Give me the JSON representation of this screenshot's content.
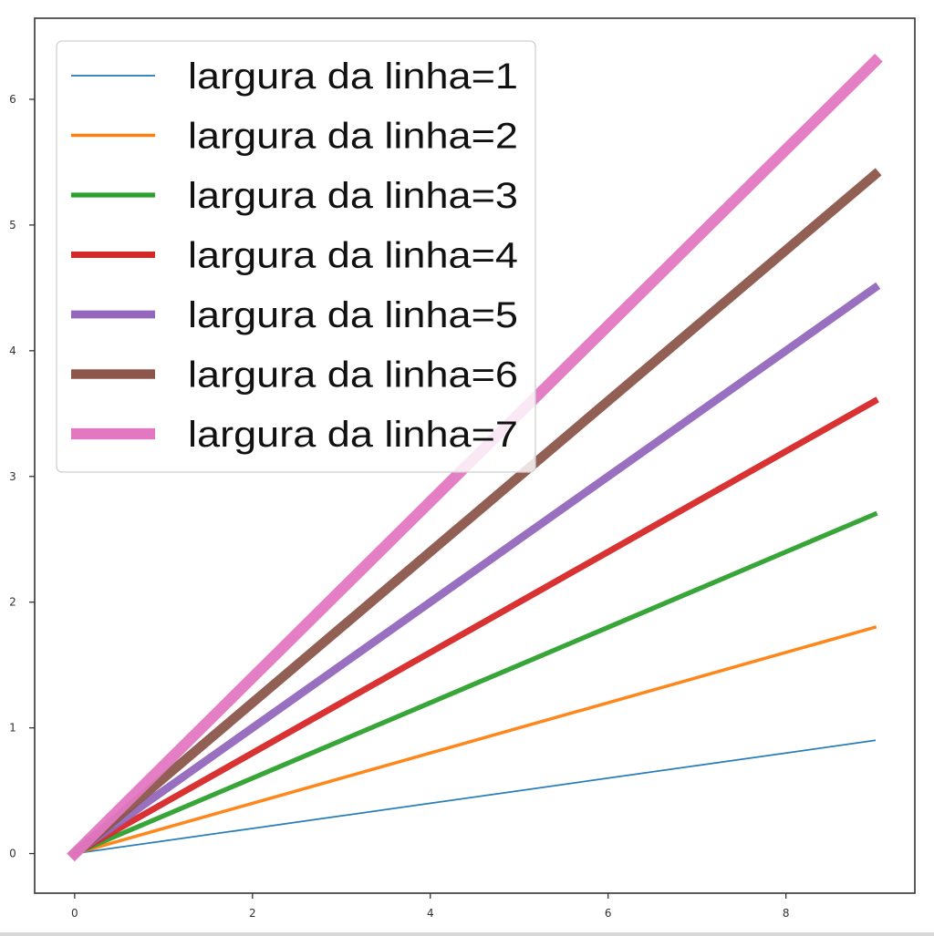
{
  "chart_data": {
    "type": "line",
    "title": "",
    "xlabel": "",
    "ylabel": "",
    "x": [
      0,
      1,
      2,
      3,
      4,
      5,
      6,
      7,
      8,
      9
    ],
    "xlim": [
      -0.45,
      9.45
    ],
    "ylim": [
      -0.315,
      6.645
    ],
    "xticks": [
      "0",
      "2",
      "4",
      "6",
      "8"
    ],
    "yticks": [
      "0",
      "1",
      "2",
      "3",
      "4",
      "5",
      "6"
    ],
    "grid": false,
    "legend_position": "top-left",
    "series": [
      {
        "name": "largura da linha=1",
        "slope": 0.1,
        "linewidth": 1,
        "color": "#1f77b4",
        "values": [
          0,
          0.1,
          0.2,
          0.3,
          0.4,
          0.5,
          0.6,
          0.7,
          0.8,
          0.9
        ]
      },
      {
        "name": "largura da linha=2",
        "slope": 0.2,
        "linewidth": 2,
        "color": "#ff7f0e",
        "values": [
          0,
          0.2,
          0.4,
          0.6,
          0.8,
          1.0,
          1.2,
          1.4,
          1.6,
          1.8
        ]
      },
      {
        "name": "largura da linha=3",
        "slope": 0.3,
        "linewidth": 3,
        "color": "#2ca02c",
        "values": [
          0,
          0.3,
          0.6,
          0.9,
          1.2,
          1.5,
          1.8,
          2.1,
          2.4,
          2.7
        ]
      },
      {
        "name": "largura da linha=4",
        "slope": 0.4,
        "linewidth": 4,
        "color": "#d62728",
        "values": [
          0,
          0.4,
          0.8,
          1.2,
          1.6,
          2.0,
          2.4,
          2.8,
          3.2,
          3.6
        ]
      },
      {
        "name": "largura da linha=5",
        "slope": 0.5,
        "linewidth": 5,
        "color": "#9467bd",
        "values": [
          0,
          0.5,
          1.0,
          1.5,
          2.0,
          2.5,
          3.0,
          3.5,
          4.0,
          4.5
        ]
      },
      {
        "name": "largura da linha=6",
        "slope": 0.6,
        "linewidth": 6,
        "color": "#8c564b",
        "values": [
          0,
          0.6,
          1.2,
          1.8,
          2.4,
          3.0,
          3.6,
          4.2,
          4.8,
          5.4
        ]
      },
      {
        "name": "largura da linha=7",
        "slope": 0.7,
        "linewidth": 7,
        "color": "#e377c2",
        "values": [
          0,
          0.7,
          1.4,
          2.1,
          2.8,
          3.5,
          4.2,
          4.9,
          5.6,
          6.3
        ]
      }
    ]
  }
}
